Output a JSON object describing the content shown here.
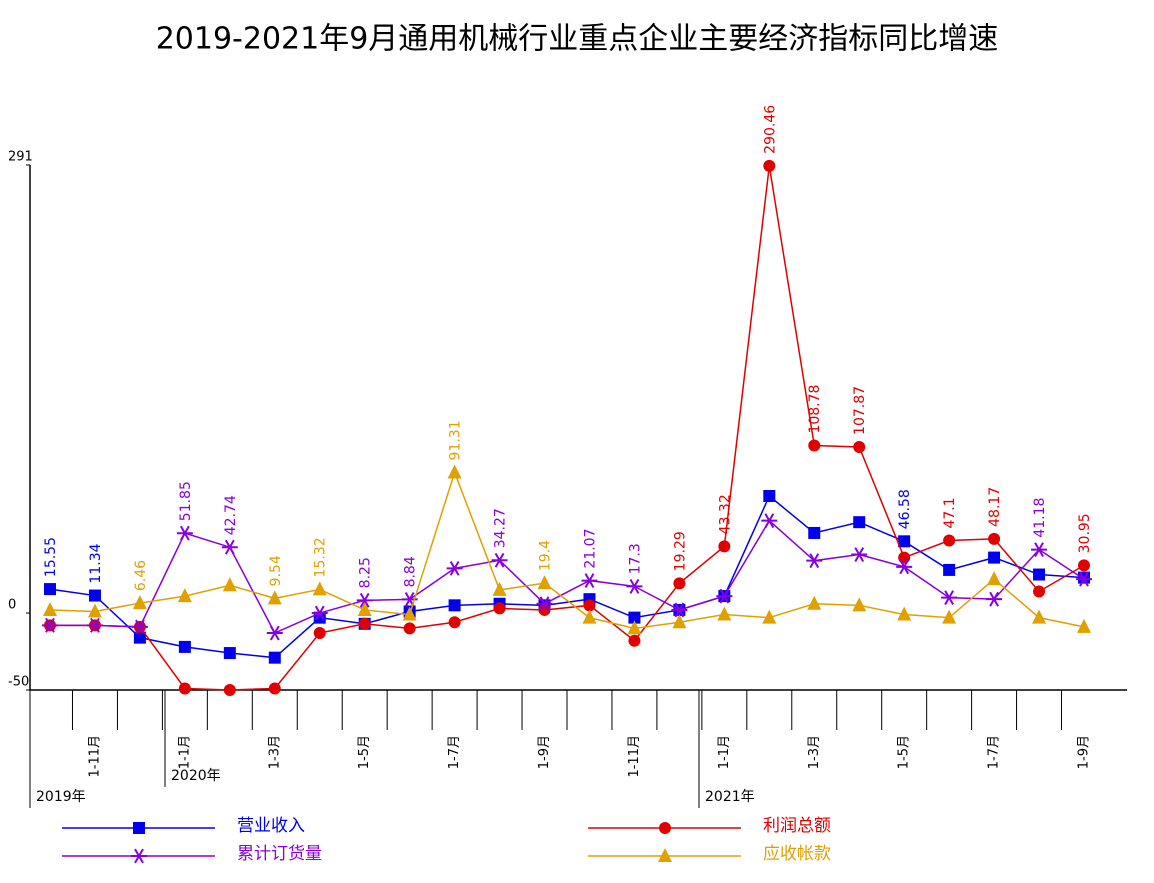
{
  "chart_data": {
    "type": "line",
    "title": "2019-2021年9月通用机械行业重点企业主要经济指标同比增速",
    "categories": [
      null,
      "1-11月",
      null,
      "1-1月",
      null,
      "1-3月",
      null,
      "1-5月",
      null,
      "1-7月",
      null,
      "1-9月",
      null,
      "1-11月",
      null,
      "1-1月",
      null,
      "1-3月",
      null,
      "1-5月",
      null,
      "1-7月",
      null,
      "1-9月"
    ],
    "year_labels": [
      "2019年",
      "2020年",
      "2021年"
    ],
    "ylim": [
      -50,
      291
    ],
    "yticks": [
      -50,
      0,
      291
    ],
    "series": [
      {
        "name": "营业收入",
        "color": "#0000ee",
        "marker": "square",
        "values": [
          15.55,
          11.34,
          -16,
          -22,
          -26,
          -29,
          -3,
          -7,
          1,
          5,
          6,
          5,
          9,
          -3,
          2,
          11,
          76,
          52,
          59,
          46.58,
          28,
          36,
          25,
          23
        ],
        "value_labels": [
          "15.55",
          "11.34",
          null,
          null,
          null,
          null,
          null,
          null,
          null,
          null,
          null,
          null,
          null,
          null,
          null,
          null,
          null,
          null,
          null,
          "46.58",
          null,
          null,
          null,
          null
        ]
      },
      {
        "name": "利润总额",
        "color": "#e00000",
        "marker": "circle",
        "values": [
          -8,
          -8,
          -9,
          -49,
          -50,
          -49,
          -13,
          -7,
          -10,
          -6,
          3,
          2,
          5,
          -18,
          19.29,
          43.32,
          290.46,
          108.78,
          107.87,
          36,
          47.1,
          48.17,
          14,
          30.95
        ],
        "value_labels": [
          null,
          null,
          null,
          null,
          null,
          null,
          null,
          null,
          null,
          null,
          null,
          null,
          null,
          null,
          "19.29",
          "43.32",
          "290.46",
          "108.78",
          "107.87",
          null,
          "47.1",
          "48.17",
          null,
          "30.95"
        ]
      },
      {
        "name": "累计订货量",
        "color": "#8800dd",
        "marker": "star",
        "values": [
          -8,
          -8,
          -9,
          51.85,
          42.74,
          -13,
          0,
          8.25,
          8.84,
          29,
          34.27,
          6,
          21.07,
          17.3,
          2,
          11,
          60,
          34,
          38,
          30,
          10,
          9,
          41.18,
          22
        ],
        "value_labels": [
          null,
          null,
          null,
          "51.85",
          "42.74",
          null,
          null,
          "8.25",
          "8.84",
          null,
          "34.27",
          null,
          "21.07",
          "17.3",
          null,
          null,
          null,
          null,
          null,
          null,
          null,
          null,
          "41.18",
          null
        ]
      },
      {
        "name": "应收帐款",
        "color": "#e0a000",
        "marker": "triangle",
        "values": [
          2,
          1,
          6.46,
          11,
          18,
          9.54,
          15.32,
          2,
          -1,
          91.31,
          15,
          19.4,
          -3,
          -10,
          -6,
          -1,
          -3,
          6,
          5,
          -1,
          -3,
          22,
          -3,
          -9
        ],
        "value_labels": [
          null,
          null,
          "6.46",
          null,
          null,
          "9.54",
          "15.32",
          null,
          null,
          "91.31",
          null,
          "19.4",
          null,
          null,
          null,
          null,
          null,
          null,
          null,
          null,
          null,
          null,
          null,
          null
        ]
      }
    ]
  }
}
